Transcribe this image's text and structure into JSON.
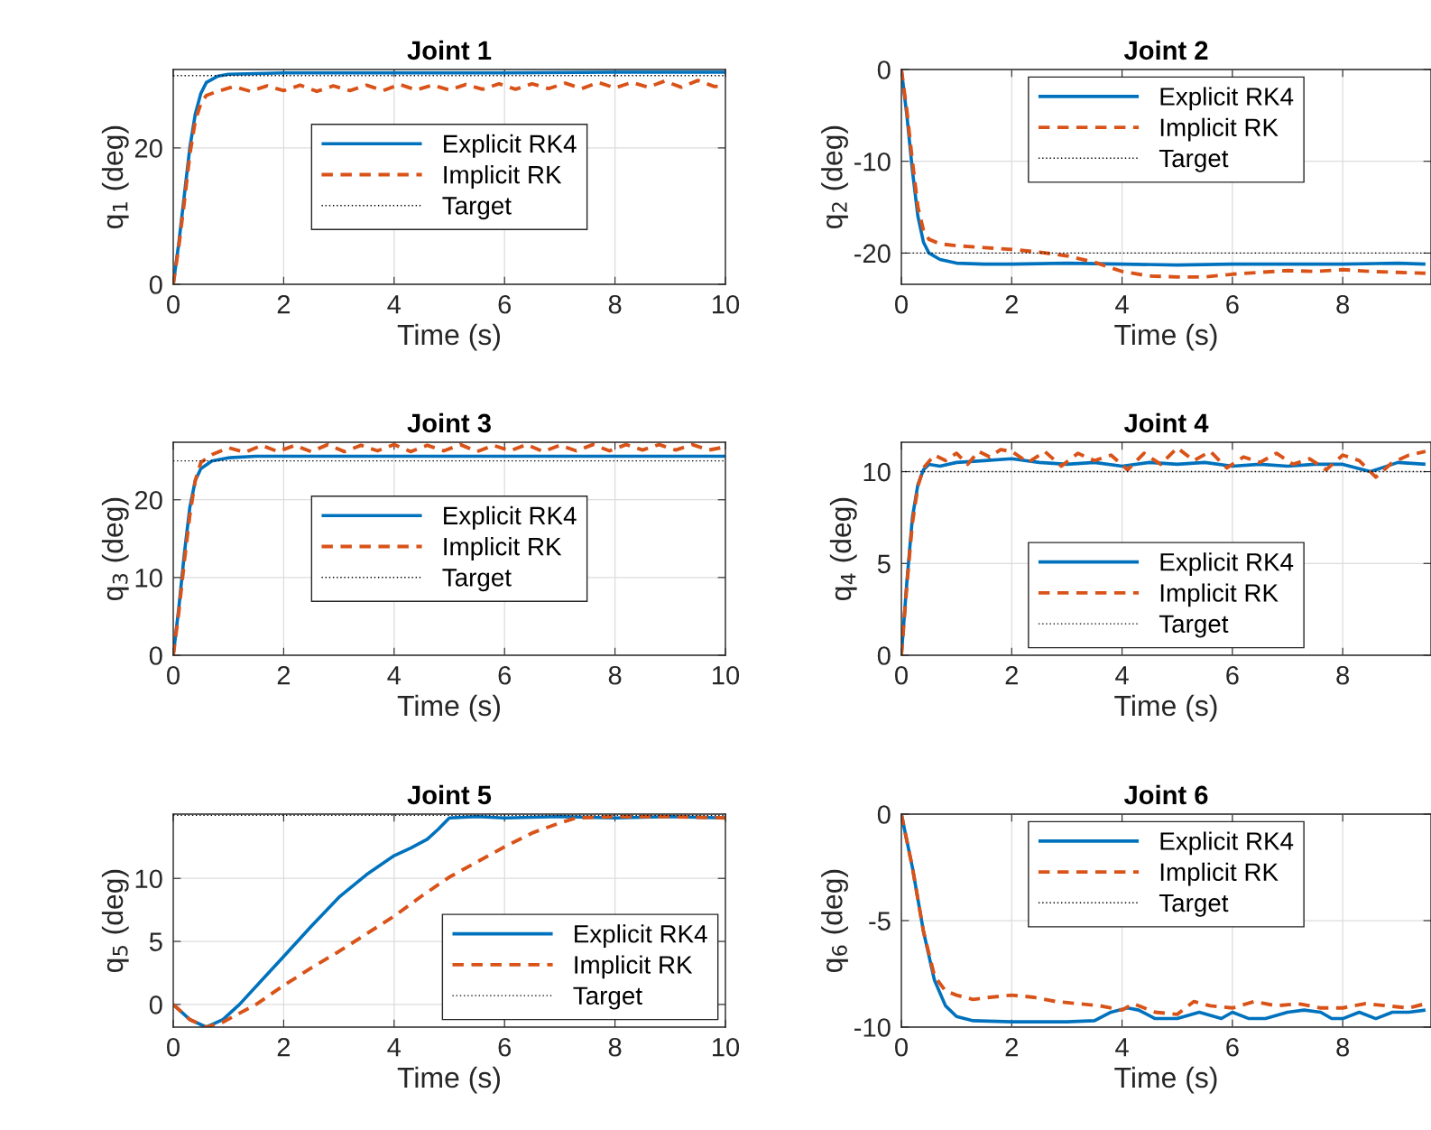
{
  "chart_data": [
    {
      "type": "line",
      "title": "Joint 1",
      "xlabel": "Time (s)",
      "ylabel": "q$_{1}$ (deg)",
      "xlim": [
        0,
        10
      ],
      "xticks": [
        0,
        2,
        4,
        6,
        8,
        10
      ],
      "ylim": [
        0,
        31.5
      ],
      "yticks": [
        0,
        20
      ],
      "grid": true,
      "legend": "center",
      "series": [
        {
          "name": "Explicit RK4",
          "color": "#0072bd",
          "line_style": "solid",
          "x": [
            0,
            0.1,
            0.2,
            0.3,
            0.4,
            0.5,
            0.6,
            0.8,
            1,
            2,
            4,
            6,
            8,
            10
          ],
          "values": [
            0,
            6,
            13,
            20,
            25,
            28,
            29.6,
            30.5,
            30.8,
            31,
            31,
            31,
            31.1,
            31.1
          ]
        },
        {
          "name": "Implicit RK",
          "color": "#d95319",
          "line_style": "dashed",
          "x": [
            0,
            0.1,
            0.2,
            0.3,
            0.4,
            0.5,
            0.6,
            0.8,
            1.1,
            1.4,
            1.7,
            2,
            2.3,
            2.6,
            2.9,
            3.2,
            3.5,
            3.8,
            4.1,
            4.4,
            4.7,
            5,
            5.3,
            5.6,
            5.9,
            6.2,
            6.5,
            6.8,
            7.1,
            7.4,
            7.7,
            8,
            8.3,
            8.6,
            8.9,
            9.2,
            9.5,
            9.8,
            10
          ],
          "values": [
            0,
            5.5,
            12,
            19,
            24,
            26.5,
            27.7,
            28.3,
            29,
            28.3,
            29.1,
            28.4,
            29.2,
            28.3,
            29.1,
            28.4,
            29.2,
            28.4,
            29.3,
            28.5,
            29.2,
            28.5,
            29.3,
            28.6,
            29.4,
            28.6,
            29.4,
            28.7,
            29.5,
            28.7,
            29.6,
            28.8,
            29.6,
            28.9,
            29.8,
            28.9,
            29.9,
            29,
            29.1
          ]
        },
        {
          "name": "Target",
          "color": "#000000",
          "line_style": "dotted",
          "x": [
            0,
            10
          ],
          "values": [
            30.6,
            30.6
          ]
        }
      ]
    },
    {
      "type": "line",
      "title": "Joint 2",
      "xlabel": "Time (s)",
      "ylabel": "q$_{2}$ (deg)",
      "xlim": [
        0,
        9.6
      ],
      "xticks": [
        0,
        2,
        4,
        6,
        8
      ],
      "ylim": [
        -23.4,
        0
      ],
      "yticks": [
        -20,
        -10,
        0
      ],
      "grid": true,
      "legend": "top",
      "series": [
        {
          "name": "Explicit RK4",
          "color": "#0072bd",
          "line_style": "solid",
          "x": [
            0,
            0.1,
            0.2,
            0.3,
            0.4,
            0.5,
            0.7,
            1,
            1.5,
            2,
            3,
            4,
            5,
            6,
            7,
            8,
            9,
            9.5
          ],
          "values": [
            0,
            -5,
            -11,
            -16,
            -18.8,
            -20,
            -20.7,
            -21.1,
            -21.2,
            -21.2,
            -21.1,
            -21.2,
            -21.3,
            -21.2,
            -21.2,
            -21.2,
            -21.1,
            -21.2
          ]
        },
        {
          "name": "Implicit RK",
          "color": "#d95319",
          "line_style": "dashed",
          "x": [
            0,
            0.1,
            0.2,
            0.3,
            0.4,
            0.5,
            0.7,
            1,
            1.5,
            2,
            2.5,
            3,
            3.5,
            4,
            4.5,
            5,
            5.5,
            6,
            6.5,
            7,
            7.5,
            8,
            8.5,
            9,
            9.5
          ],
          "values": [
            0,
            -4.5,
            -10,
            -15,
            -17.5,
            -18.5,
            -19,
            -19.2,
            -19.4,
            -19.6,
            -19.9,
            -20.3,
            -21,
            -22,
            -22.5,
            -22.6,
            -22.6,
            -22.3,
            -22.1,
            -21.9,
            -22,
            -21.8,
            -22,
            -22.1,
            -22.2
          ]
        },
        {
          "name": "Target",
          "color": "#000000",
          "line_style": "dotted",
          "x": [
            0,
            9.5
          ],
          "values": [
            -20,
            -20
          ]
        }
      ]
    },
    {
      "type": "line",
      "title": "Joint 3",
      "xlabel": "Time (s)",
      "ylabel": "q$_{3}$ (deg)",
      "xlim": [
        0,
        10
      ],
      "xticks": [
        0,
        2,
        4,
        6,
        8,
        10
      ],
      "ylim": [
        0,
        27.4
      ],
      "yticks": [
        0,
        10,
        20
      ],
      "grid": true,
      "legend": "center",
      "series": [
        {
          "name": "Explicit RK4",
          "color": "#0072bd",
          "line_style": "solid",
          "x": [
            0,
            0.1,
            0.2,
            0.3,
            0.4,
            0.5,
            0.7,
            1,
            1.5,
            2,
            4,
            6,
            8,
            10
          ],
          "values": [
            0,
            6,
            13,
            19,
            22.5,
            24,
            25,
            25.4,
            25.6,
            25.6,
            25.6,
            25.6,
            25.6,
            25.6
          ]
        },
        {
          "name": "Implicit RK",
          "color": "#d95319",
          "line_style": "dashed",
          "x": [
            0,
            0.1,
            0.2,
            0.3,
            0.4,
            0.5,
            0.7,
            1,
            1.3,
            1.6,
            1.9,
            2.2,
            2.5,
            2.8,
            3.1,
            3.4,
            3.7,
            4,
            4.3,
            4.6,
            4.9,
            5.2,
            5.5,
            5.8,
            6.1,
            6.4,
            6.7,
            7,
            7.3,
            7.6,
            7.9,
            8.2,
            8.5,
            8.8,
            9.1,
            9.4,
            9.7,
            10
          ],
          "values": [
            0,
            5.5,
            12,
            18,
            22.5,
            24.8,
            25.8,
            26.7,
            26.1,
            27,
            26.2,
            27,
            26.2,
            27.1,
            26.2,
            27,
            26.3,
            27.1,
            26.2,
            27,
            26.3,
            27.1,
            26.2,
            27,
            26.3,
            27.1,
            26.2,
            27,
            26.3,
            27.1,
            26.3,
            27.1,
            26.4,
            27.1,
            26.4,
            27.1,
            26.4,
            26.8
          ]
        },
        {
          "name": "Target",
          "color": "#000000",
          "line_style": "dotted",
          "x": [
            0,
            10
          ],
          "values": [
            25,
            25
          ]
        }
      ]
    },
    {
      "type": "line",
      "title": "Joint 4",
      "xlabel": "Time (s)",
      "ylabel": "q$_{4}$ (deg)",
      "xlim": [
        0,
        9.6
      ],
      "xticks": [
        0,
        2,
        4,
        6,
        8
      ],
      "ylim": [
        0,
        11.6
      ],
      "yticks": [
        0,
        5,
        10
      ],
      "grid": true,
      "legend": "bottom",
      "series": [
        {
          "name": "Explicit RK4",
          "color": "#0072bd",
          "line_style": "solid",
          "x": [
            0,
            0.1,
            0.2,
            0.3,
            0.4,
            0.5,
            0.7,
            1,
            1.5,
            2,
            2.5,
            3,
            3.5,
            4,
            4.5,
            5,
            5.5,
            6,
            6.5,
            7,
            7.5,
            8,
            8.5,
            9,
            9.5
          ],
          "values": [
            0,
            4,
            7.5,
            9.3,
            10.1,
            10.4,
            10.3,
            10.5,
            10.6,
            10.7,
            10.5,
            10.4,
            10.5,
            10.3,
            10.5,
            10.4,
            10.5,
            10.3,
            10.4,
            10.3,
            10.4,
            10.4,
            10,
            10.5,
            10.4
          ]
        },
        {
          "name": "Implicit RK",
          "color": "#d95319",
          "line_style": "dashed",
          "x": [
            0,
            0.1,
            0.2,
            0.3,
            0.4,
            0.6,
            0.8,
            1,
            1.2,
            1.4,
            1.6,
            1.8,
            2,
            2.3,
            2.6,
            2.9,
            3.2,
            3.5,
            3.8,
            4.1,
            4.4,
            4.7,
            5,
            5.3,
            5.6,
            5.9,
            6.2,
            6.5,
            6.8,
            7.1,
            7.4,
            7.7,
            8,
            8.3,
            8.6,
            8.9,
            9.2,
            9.5
          ],
          "values": [
            0,
            3.8,
            7.2,
            9.2,
            10.2,
            10.9,
            10.6,
            11,
            10.4,
            11.1,
            10.8,
            11.2,
            11.1,
            10.5,
            11.1,
            10.3,
            11,
            10.6,
            10.9,
            10.1,
            11,
            10.4,
            11.3,
            10.6,
            11.1,
            10.2,
            10.8,
            10.5,
            11,
            10.4,
            10.7,
            10.1,
            10.9,
            10.6,
            9.7,
            10.5,
            10.9,
            11.1
          ]
        },
        {
          "name": "Target",
          "color": "#000000",
          "line_style": "dotted",
          "x": [
            0,
            9.5
          ],
          "values": [
            10,
            10
          ]
        }
      ]
    },
    {
      "type": "line",
      "title": "Joint 5",
      "xlabel": "Time (s)",
      "ylabel": "q$_{5}$ (deg)",
      "xlim": [
        0,
        10
      ],
      "xticks": [
        0,
        2,
        4,
        6,
        8,
        10
      ],
      "ylim": [
        -1.8,
        15.1
      ],
      "yticks": [
        0,
        5,
        10
      ],
      "grid": true,
      "legend": "bottom right",
      "series": [
        {
          "name": "Explicit RK4",
          "color": "#0072bd",
          "line_style": "solid",
          "x": [
            0,
            0.3,
            0.6,
            0.9,
            1.2,
            1.6,
            2,
            2.5,
            3,
            3.5,
            4,
            4.3,
            4.6,
            4.8,
            5,
            5.5,
            6,
            7,
            8,
            9,
            10
          ],
          "values": [
            0,
            -1.2,
            -1.8,
            -1.2,
            0,
            1.9,
            3.8,
            6.2,
            8.5,
            10.3,
            11.8,
            12.4,
            13.1,
            13.9,
            14.8,
            14.9,
            14.8,
            14.9,
            14.8,
            14.9,
            14.8
          ]
        },
        {
          "name": "Implicit RK",
          "color": "#d95319",
          "line_style": "dashed",
          "x": [
            0,
            0.3,
            0.6,
            0.9,
            1.2,
            1.5,
            2,
            2.5,
            3,
            3.5,
            4,
            4.5,
            5,
            5.5,
            6,
            6.5,
            7,
            7.3,
            8,
            9,
            10
          ],
          "values": [
            0,
            -1.2,
            -1.8,
            -1.4,
            -0.7,
            0,
            1.5,
            2.9,
            4.2,
            5.6,
            7,
            8.6,
            10.1,
            11.3,
            12.5,
            13.6,
            14.4,
            14.8,
            14.9,
            14.9,
            14.8
          ]
        },
        {
          "name": "Target",
          "color": "#000000",
          "line_style": "dotted",
          "x": [
            0,
            10
          ],
          "values": [
            15,
            15
          ]
        }
      ]
    },
    {
      "type": "line",
      "title": "Joint 6",
      "xlabel": "Time (s)",
      "ylabel": "q$_{6}$ (deg)",
      "xlim": [
        0,
        9.6
      ],
      "xticks": [
        0,
        2,
        4,
        6,
        8
      ],
      "ylim": [
        -10,
        0
      ],
      "yticks": [
        -10,
        -5,
        0
      ],
      "grid": true,
      "legend": "top",
      "series": [
        {
          "name": "Explicit RK4",
          "color": "#0072bd",
          "line_style": "solid",
          "x": [
            0,
            0.2,
            0.4,
            0.6,
            0.8,
            1,
            1.3,
            2,
            3,
            3.5,
            3.8,
            4.1,
            4.3,
            4.6,
            5,
            5.4,
            5.8,
            6,
            6.3,
            6.6,
            7,
            7.3,
            7.6,
            7.8,
            8,
            8.3,
            8.6,
            8.9,
            9.2,
            9.5
          ],
          "values": [
            0,
            -2.5,
            -5.5,
            -7.8,
            -9,
            -9.5,
            -9.7,
            -9.75,
            -9.75,
            -9.7,
            -9.3,
            -9.1,
            -9.2,
            -9.6,
            -9.6,
            -9.3,
            -9.6,
            -9.3,
            -9.6,
            -9.6,
            -9.3,
            -9.2,
            -9.3,
            -9.6,
            -9.6,
            -9.3,
            -9.6,
            -9.3,
            -9.3,
            -9.2
          ]
        },
        {
          "name": "Implicit RK",
          "color": "#d95319",
          "line_style": "dashed",
          "x": [
            0,
            0.2,
            0.4,
            0.6,
            0.8,
            1,
            1.3,
            1.6,
            2,
            2.4,
            2.8,
            3.2,
            3.6,
            4,
            4.2,
            4.6,
            5,
            5.3,
            5.6,
            6,
            6.4,
            6.8,
            7.2,
            7.6,
            8,
            8.4,
            8.8,
            9.2,
            9.5
          ],
          "values": [
            0,
            -2.5,
            -5.5,
            -7.6,
            -8.3,
            -8.5,
            -8.7,
            -8.6,
            -8.5,
            -8.6,
            -8.8,
            -8.9,
            -9,
            -9.2,
            -8.9,
            -9.3,
            -9.4,
            -8.8,
            -9,
            -9.1,
            -8.8,
            -9,
            -8.9,
            -9.1,
            -9.1,
            -8.9,
            -9,
            -9.1,
            -8.9
          ]
        },
        {
          "name": "Target",
          "color": "#000000",
          "line_style": "dotted"
        }
      ]
    }
  ]
}
